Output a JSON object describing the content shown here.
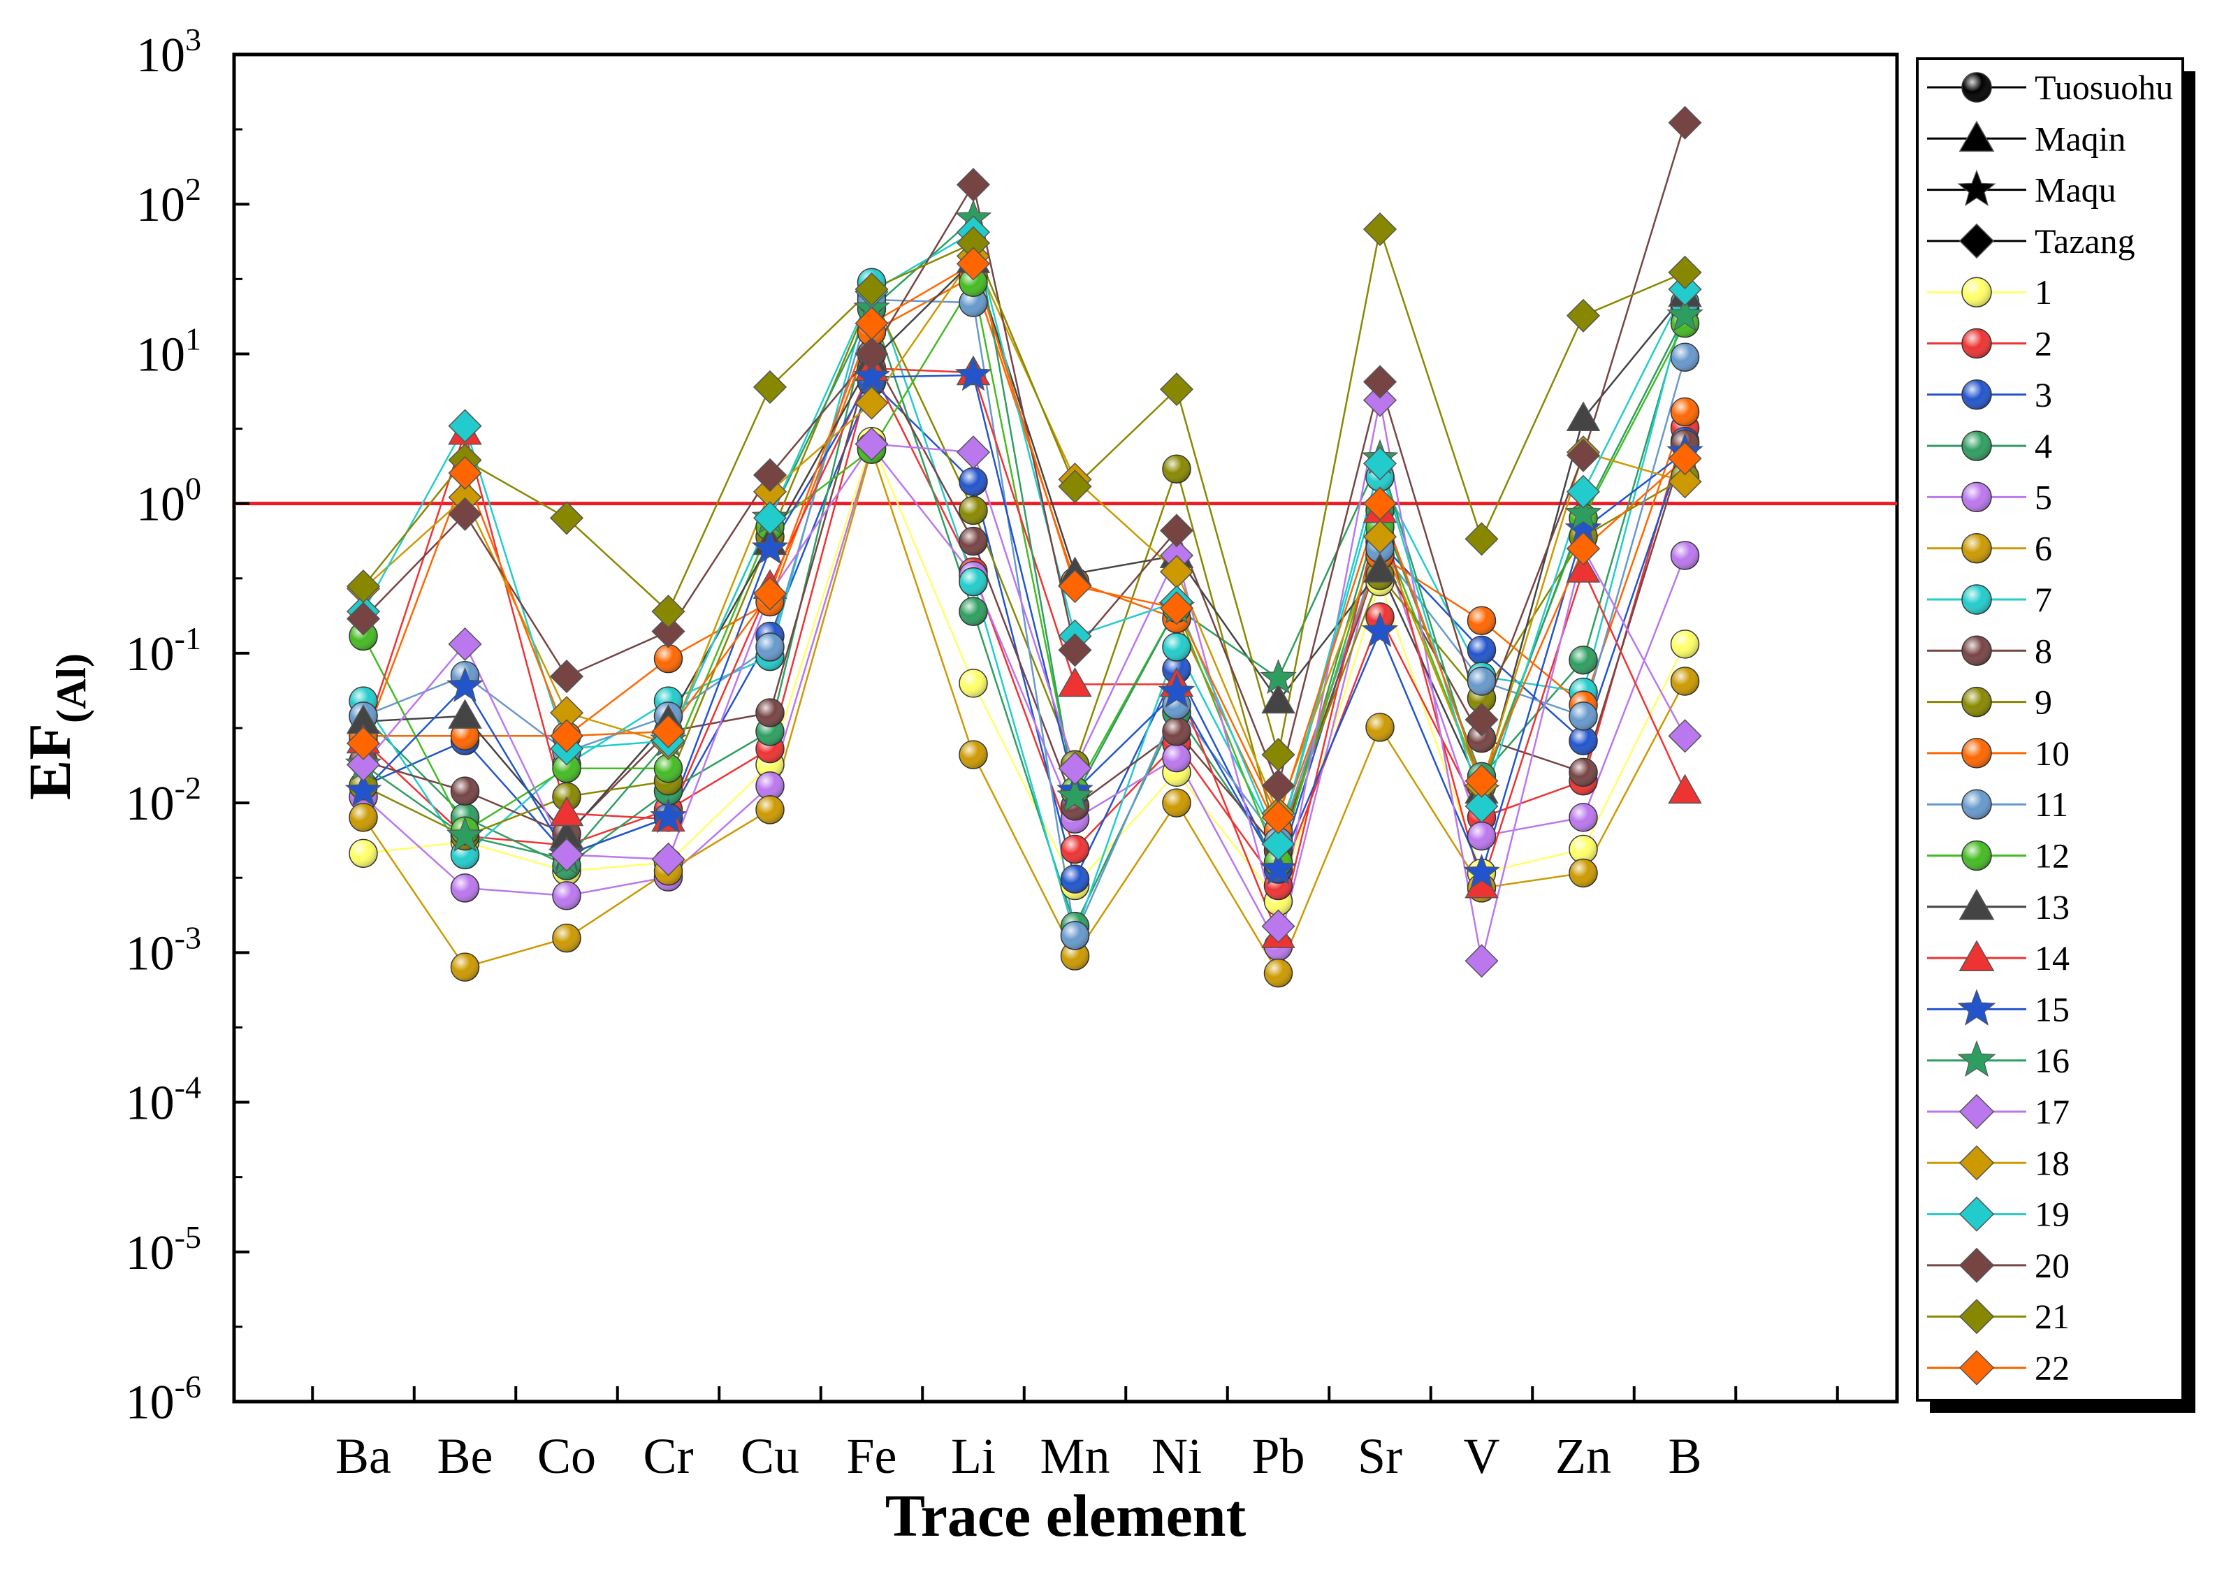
{
  "chart_data": {
    "type": "line",
    "yscale": "log",
    "ylim": [
      1e-06,
      1000
    ],
    "ylabel": "EF",
    "ylabel_sub": "(Al)",
    "xlabel": "Trace element",
    "reference_line": {
      "y": 1,
      "color": "#ee1c25"
    },
    "y_tick_labels": [
      {
        "base": "10",
        "exp": "-6"
      },
      {
        "base": "10",
        "exp": "-5"
      },
      {
        "base": "10",
        "exp": "-4"
      },
      {
        "base": "10",
        "exp": "-3"
      },
      {
        "base": "10",
        "exp": "-2"
      },
      {
        "base": "10",
        "exp": "-1"
      },
      {
        "base": "10",
        "exp": "0"
      },
      {
        "base": "10",
        "exp": "1"
      },
      {
        "base": "10",
        "exp": "2"
      },
      {
        "base": "10",
        "exp": "3"
      }
    ],
    "categories": [
      "Ba",
      "Be",
      "Co",
      "Cr",
      "Cu",
      "Fe",
      "Li",
      "Mn",
      "Ni",
      "Pb",
      "Sr",
      "V",
      "Zn",
      "B"
    ],
    "legend": [
      {
        "name": "Tuosuohu",
        "marker": "circle",
        "color": "#000000"
      },
      {
        "name": "Maqin",
        "marker": "triangle",
        "color": "#000000"
      },
      {
        "name": "Maqu",
        "marker": "star",
        "color": "#000000"
      },
      {
        "name": "Tazang",
        "marker": "diamond",
        "color": "#000000"
      }
    ],
    "series": [
      {
        "name": "1",
        "marker": "circle",
        "color": "#ffff66",
        "values": [
          0.0046,
          0.0055,
          0.0035,
          0.004,
          0.018,
          2.6,
          0.063,
          0.0028,
          0.016,
          0.0022,
          0.3,
          0.0034,
          0.0049,
          0.115
        ]
      },
      {
        "name": "2",
        "marker": "circle",
        "color": "#ee3333",
        "values": [
          0.026,
          0.006,
          0.0052,
          0.009,
          0.023,
          8.0,
          0.35,
          0.0049,
          0.025,
          0.0028,
          0.175,
          0.008,
          0.014,
          3.2
        ]
      },
      {
        "name": "3",
        "marker": "circle",
        "color": "#2255cc",
        "values": [
          0.013,
          0.026,
          0.0045,
          0.008,
          0.13,
          6.5,
          1.4,
          0.0031,
          0.078,
          0.0036,
          0.55,
          0.105,
          0.026,
          2.6
        ]
      },
      {
        "name": "4",
        "marker": "circle",
        "color": "#2e9e60",
        "values": [
          0.038,
          0.008,
          0.0038,
          0.012,
          0.03,
          20.0,
          0.19,
          0.0015,
          0.04,
          0.004,
          0.9,
          0.015,
          0.09,
          20.0
        ]
      },
      {
        "name": "5",
        "marker": "circle",
        "color": "#bb77ee",
        "values": [
          0.011,
          0.0027,
          0.0024,
          0.0032,
          0.013,
          2.4,
          0.33,
          0.0078,
          0.02,
          0.0011,
          0.6,
          0.006,
          0.008,
          0.45
        ]
      },
      {
        "name": "6",
        "marker": "circle",
        "color": "#cc9900",
        "values": [
          0.008,
          0.0008,
          0.00125,
          0.0035,
          0.009,
          2.3,
          0.021,
          0.00095,
          0.01,
          0.00073,
          0.032,
          0.0027,
          0.0034,
          0.065
        ]
      },
      {
        "name": "7",
        "marker": "circle",
        "color": "#22cccc",
        "values": [
          0.048,
          0.0045,
          0.018,
          0.048,
          0.095,
          30.0,
          0.3,
          0.0013,
          0.11,
          0.0053,
          1.5,
          0.07,
          0.055,
          22.0
        ]
      },
      {
        "name": "8",
        "marker": "circle",
        "color": "#774444",
        "values": [
          0.019,
          0.012,
          0.0062,
          0.03,
          0.04,
          10.0,
          0.56,
          0.0095,
          0.03,
          0.0048,
          0.45,
          0.027,
          0.016,
          2.5
        ]
      },
      {
        "name": "9",
        "marker": "circle",
        "color": "#888800",
        "values": [
          0.013,
          0.006,
          0.011,
          0.014,
          0.6,
          25.0,
          0.9,
          0.018,
          1.7,
          0.0055,
          0.33,
          0.05,
          0.6,
          1.5
        ]
      },
      {
        "name": "10",
        "marker": "circle",
        "color": "#ff6600",
        "values": [
          0.028,
          0.028,
          0.028,
          0.092,
          0.22,
          14.0,
          33.0,
          0.3,
          0.17,
          0.0065,
          0.45,
          0.165,
          0.045,
          4.1
        ]
      },
      {
        "name": "11",
        "marker": "circle",
        "color": "#6699cc",
        "values": [
          0.038,
          0.071,
          0.022,
          0.038,
          0.11,
          23.0,
          22.0,
          0.0013,
          0.045,
          0.0055,
          0.5,
          0.065,
          0.038,
          9.5
        ]
      },
      {
        "name": "12",
        "marker": "circle",
        "color": "#44bb22",
        "values": [
          0.13,
          0.0065,
          0.017,
          0.017,
          0.7,
          2.3,
          30.0,
          0.012,
          0.2,
          0.004,
          0.7,
          0.013,
          0.8,
          16.0
        ]
      },
      {
        "name": "13",
        "marker": "triangle",
        "color": "#444444",
        "values": [
          0.035,
          0.038,
          0.006,
          0.035,
          0.55,
          9.0,
          42.0,
          0.34,
          0.45,
          0.048,
          0.36,
          0.012,
          3.7,
          25.0
        ]
      },
      {
        "name": "14",
        "marker": "triangle",
        "color": "#ee3333",
        "values": [
          0.026,
          3.0,
          0.0085,
          0.0078,
          0.28,
          8.0,
          7.5,
          0.062,
          0.062,
          0.0013,
          0.9,
          0.0028,
          0.36,
          0.012
        ]
      },
      {
        "name": "15",
        "marker": "star",
        "color": "#2255cc",
        "values": [
          0.012,
          0.06,
          0.0045,
          0.008,
          0.5,
          7.0,
          7.2,
          0.012,
          0.055,
          0.0036,
          0.14,
          0.0034,
          0.67,
          2.2
        ]
      },
      {
        "name": "16",
        "marker": "star",
        "color": "#2e9e60",
        "values": [
          0.018,
          0.006,
          0.0042,
          0.026,
          0.8,
          20.0,
          80.0,
          0.011,
          0.2,
          0.068,
          2.0,
          0.012,
          0.85,
          18.0
        ]
      },
      {
        "name": "17",
        "marker": "diamond",
        "color": "#bb77ee",
        "values": [
          0.018,
          0.115,
          0.0045,
          0.0042,
          0.25,
          2.5,
          2.2,
          0.017,
          0.45,
          0.0015,
          4.9,
          0.00088,
          0.5,
          0.028
        ]
      },
      {
        "name": "18",
        "marker": "diamond",
        "color": "#cc9900",
        "values": [
          0.27,
          1.1,
          0.04,
          0.025,
          1.2,
          4.7,
          45.0,
          1.45,
          0.35,
          0.0085,
          0.6,
          0.013,
          2.2,
          1.4
        ]
      },
      {
        "name": "19",
        "marker": "diamond",
        "color": "#22cccc",
        "values": [
          0.19,
          3.3,
          0.023,
          0.026,
          0.8,
          26.0,
          65.0,
          0.13,
          0.22,
          0.0053,
          1.85,
          0.0095,
          1.2,
          27.0
        ]
      },
      {
        "name": "20",
        "marker": "diamond",
        "color": "#774444",
        "values": [
          0.17,
          0.85,
          0.07,
          0.14,
          1.55,
          10.0,
          135.0,
          0.105,
          0.66,
          0.013,
          6.5,
          0.036,
          2.1,
          350.0
        ]
      },
      {
        "name": "21",
        "marker": "diamond",
        "color": "#888800",
        "values": [
          0.28,
          1.95,
          0.8,
          0.19,
          6.0,
          27.0,
          55.0,
          1.3,
          5.8,
          0.021,
          68.0,
          0.58,
          18.0,
          35.0
        ]
      },
      {
        "name": "22",
        "marker": "diamond",
        "color": "#ff6600",
        "values": [
          0.025,
          1.6,
          0.028,
          0.03,
          0.25,
          16.0,
          40.0,
          0.28,
          0.2,
          0.008,
          1.0,
          0.014,
          0.5,
          2.0
        ]
      }
    ]
  }
}
